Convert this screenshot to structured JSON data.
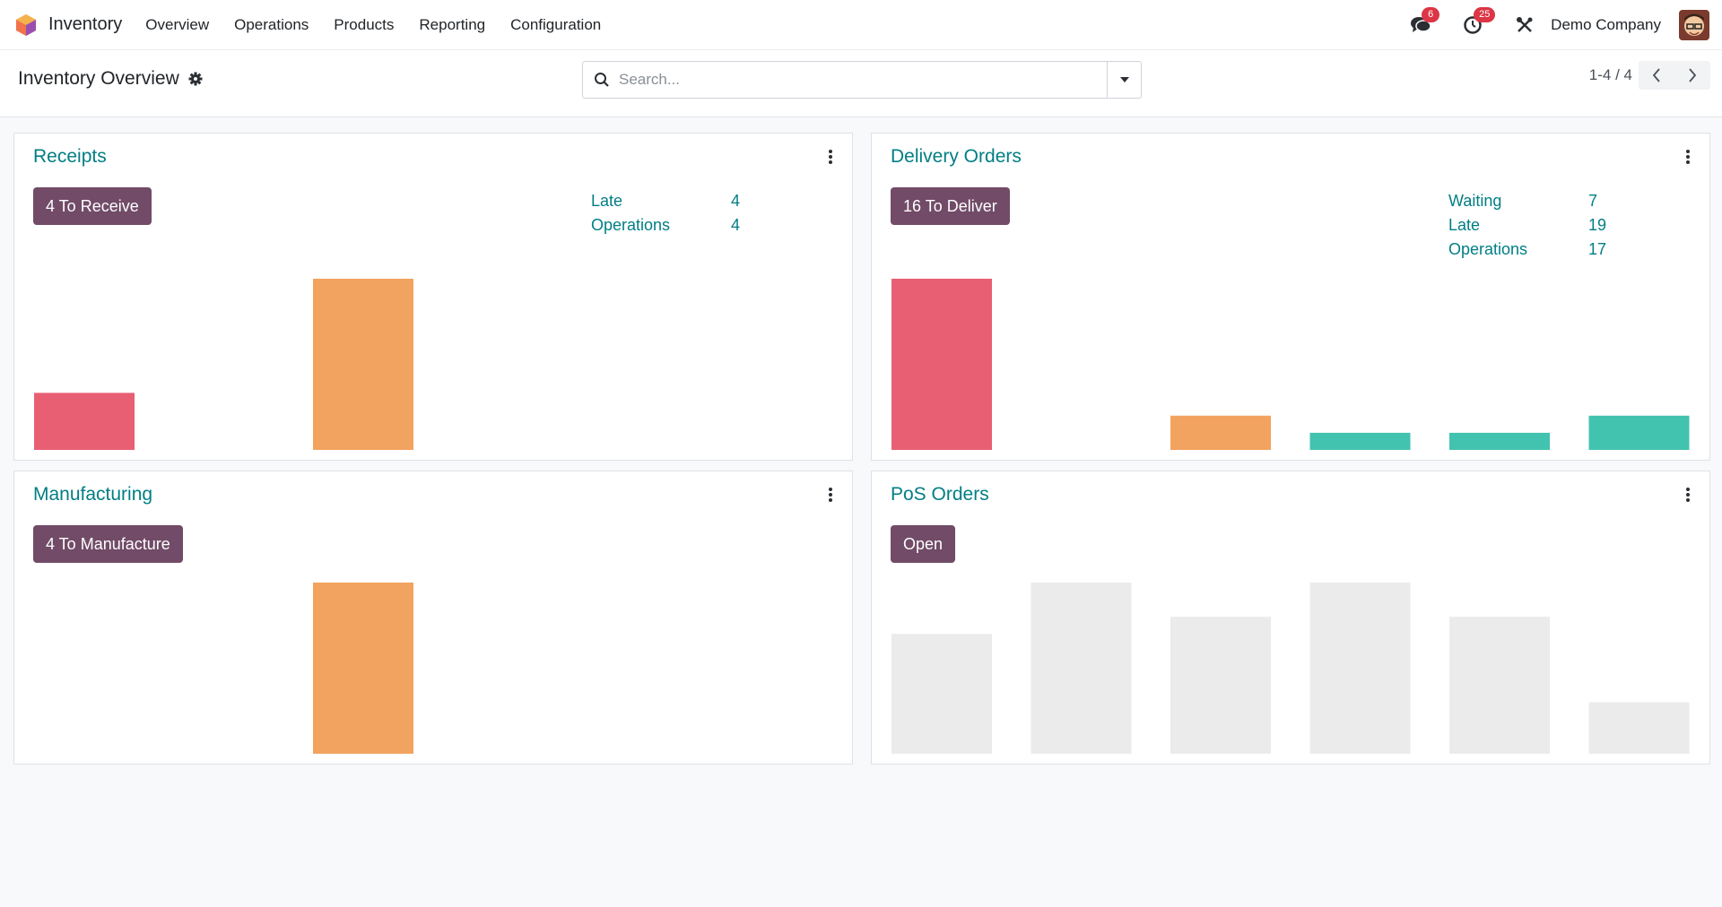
{
  "navbar": {
    "app_name": "Inventory",
    "menu": [
      "Overview",
      "Operations",
      "Products",
      "Reporting",
      "Configuration"
    ],
    "messages_badge": "6",
    "activities_badge": "25",
    "company": "Demo Company"
  },
  "control_panel": {
    "title": "Inventory Overview",
    "search_placeholder": "Search...",
    "pager": "1-4 / 4"
  },
  "colors": {
    "late": "#e85f74",
    "today": "#f2a35f",
    "future": "#42c3b0",
    "placeholder": "#ebebeb",
    "title": "#017e84",
    "button": "#714b67"
  },
  "cards": {
    "receipts": {
      "title": "Receipts",
      "button": "4 To Receive",
      "stats": [
        {
          "label": "Late",
          "value": "4"
        },
        {
          "label": "Operations",
          "value": "4"
        }
      ]
    },
    "delivery": {
      "title": "Delivery Orders",
      "button": "16 To Deliver",
      "stats": [
        {
          "label": "Waiting",
          "value": "7"
        },
        {
          "label": "Late",
          "value": "19"
        },
        {
          "label": "Operations",
          "value": "17"
        }
      ]
    },
    "manufacturing": {
      "title": "Manufacturing",
      "button": "4 To Manufacture"
    },
    "pos": {
      "title": "PoS Orders",
      "button": "Open"
    }
  },
  "chart_data": [
    {
      "type": "bar",
      "card": "Receipts",
      "values": [
        1,
        0,
        3,
        0,
        0,
        0
      ],
      "colors": [
        "late",
        "late",
        "today",
        "future",
        "future",
        "future"
      ],
      "ylim": [
        0,
        3
      ]
    },
    {
      "type": "bar",
      "card": "Delivery Orders",
      "values": [
        15,
        0,
        3,
        1.5,
        1.5,
        3
      ],
      "colors": [
        "late",
        "late",
        "today",
        "future",
        "future",
        "future"
      ],
      "ylim": [
        0,
        15
      ]
    },
    {
      "type": "bar",
      "card": "Manufacturing",
      "values": [
        0,
        0,
        4,
        0,
        0,
        0
      ],
      "colors": [
        "late",
        "late",
        "today",
        "future",
        "future",
        "future"
      ],
      "ylim": [
        0,
        4
      ]
    },
    {
      "type": "bar",
      "card": "PoS Orders",
      "values": [
        7,
        10,
        8,
        10,
        8,
        3
      ],
      "colors": [
        "placeholder",
        "placeholder",
        "placeholder",
        "placeholder",
        "placeholder",
        "placeholder"
      ],
      "ylim": [
        0,
        10
      ]
    }
  ]
}
